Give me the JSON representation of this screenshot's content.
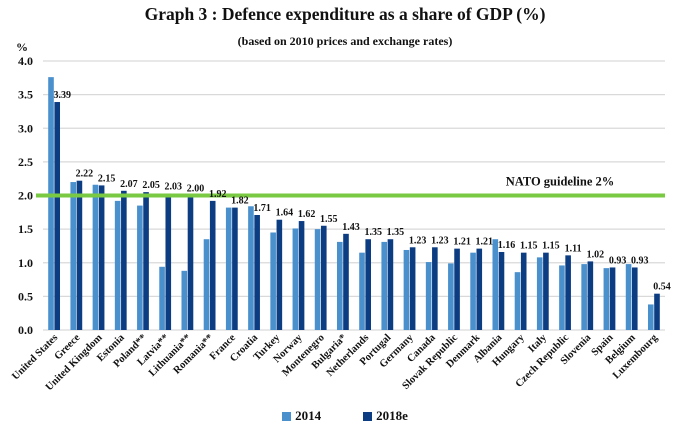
{
  "chart_data": {
    "type": "bar",
    "title": "Graph 3 : Defence expenditure as a share of GDP (%)",
    "subtitle": "(based on 2010 prices and exchange rates)",
    "ylabel": "%",
    "xlabel": "",
    "ylim": [
      0,
      4.0
    ],
    "yticks": [
      "0.0",
      "0.5",
      "1.0",
      "1.5",
      "2.0",
      "2.5",
      "3.0",
      "3.5",
      "4.0"
    ],
    "ytick_values": [
      0,
      0.5,
      1.0,
      1.5,
      2.0,
      2.5,
      3.0,
      3.5,
      4.0
    ],
    "grid": true,
    "legend_position": "bottom",
    "categories": [
      "United States",
      "Greece",
      "United Kingdom",
      "Estonia",
      "Poland**",
      "Latvia**",
      "Lithuania**",
      "Romania**",
      "France",
      "Croatia",
      "Turkey",
      "Norway",
      "Montenegro",
      "Bulgaria*",
      "Netherlands",
      "Portugal",
      "Germany",
      "Canada",
      "Slovak Republic",
      "Denmark",
      "Albania",
      "Hungary",
      "Italy",
      "Czech Republic",
      "Slovenia",
      "Spain",
      "Belgium",
      "Luxembourg"
    ],
    "series": [
      {
        "name": "2014",
        "color": "#4a90cd",
        "values": [
          3.76,
          2.2,
          2.16,
          1.92,
          1.85,
          0.94,
          0.88,
          1.35,
          1.82,
          1.84,
          1.45,
          1.51,
          1.5,
          1.31,
          1.15,
          1.31,
          1.19,
          1.01,
          0.99,
          1.15,
          1.35,
          0.86,
          1.08,
          0.96,
          0.98,
          0.92,
          0.98,
          0.38
        ],
        "labels": []
      },
      {
        "name": "2018e",
        "color": "#0c3c82",
        "values": [
          3.39,
          2.22,
          2.15,
          2.07,
          2.05,
          2.03,
          2.0,
          1.92,
          1.82,
          1.71,
          1.64,
          1.62,
          1.55,
          1.43,
          1.35,
          1.35,
          1.23,
          1.23,
          1.21,
          1.21,
          1.16,
          1.15,
          1.15,
          1.11,
          1.02,
          0.93,
          0.93,
          0.54
        ],
        "labels": [
          "3.39",
          "2.22",
          "2.15",
          "2.07",
          "2.05",
          "2.03",
          "2.00",
          "1.92",
          "1.82",
          "1.71",
          "1.64",
          "1.62",
          "1.55",
          "1.43",
          "1.35",
          "1.35",
          "1.23",
          "1.23",
          "1.21",
          "1.21",
          "1.16",
          "1.15",
          "1.15",
          "1.11",
          "1.02",
          "0.93",
          "0.93",
          "0.54"
        ]
      }
    ],
    "reference_line": {
      "value": 2.0,
      "label": "NATO guideline 2%",
      "color": "#7ac943"
    }
  }
}
